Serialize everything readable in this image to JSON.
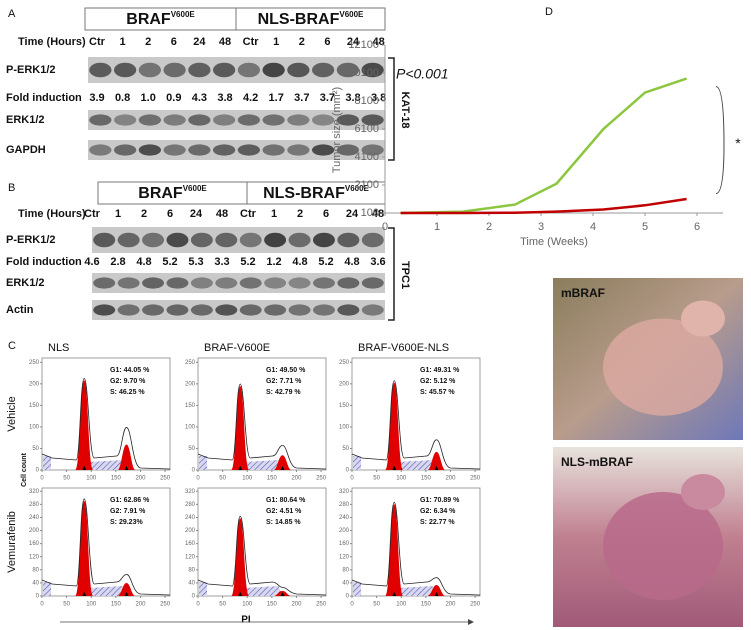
{
  "panel_a": {
    "label": "A",
    "groups": [
      {
        "name": "BRAF",
        "superscript": "V600E"
      },
      {
        "name": "NLS-BRAF",
        "superscript": "V600E"
      }
    ],
    "time_label": "Time (Hours)",
    "lanes": [
      "Ctr",
      "1",
      "2",
      "6",
      "24",
      "48",
      "Ctr",
      "1",
      "2",
      "6",
      "24",
      "48"
    ],
    "rows": [
      "P-ERK1/2",
      "Fold induction",
      "ERK1/2",
      "GAPDH"
    ],
    "fold_induction": [
      "3.9",
      "0.8",
      "1.0",
      "0.9",
      "4.3",
      "3.8",
      "4.2",
      "1.7",
      "3.7",
      "3.7",
      "3.8",
      "3.8"
    ],
    "cell_line": "KAT-18"
  },
  "panel_b": {
    "label": "B",
    "groups": [
      {
        "name": "BRAF",
        "superscript": "V600E"
      },
      {
        "name": "NLS-BRAF",
        "superscript": "V600E"
      }
    ],
    "time_label": "Time (Hours)",
    "lanes": [
      "Ctr",
      "1",
      "2",
      "6",
      "24",
      "48",
      "Ctr",
      "1",
      "2",
      "6",
      "24",
      "48"
    ],
    "rows": [
      "P-ERK1/2",
      "Fold induction",
      "ERK1/2",
      "Actin"
    ],
    "fold_induction": [
      "4.6",
      "2.8",
      "4.8",
      "5.2",
      "5.3",
      "3.3",
      "5.2",
      "1.2",
      "4.8",
      "5.2",
      "4.8",
      "3.6"
    ],
    "cell_line": "TPC1"
  },
  "panel_c": {
    "label": "C",
    "columns": [
      "NLS",
      "BRAF-V600E",
      "BRAF-V600E-NLS"
    ],
    "rows": [
      "Vehicle",
      "Vemurafenib"
    ],
    "y_label": "Cell count",
    "x_label": "PI",
    "xlim": [
      0,
      260
    ],
    "xticks": [
      0,
      50,
      100,
      150,
      200,
      250
    ],
    "row_ylims": [
      [
        0,
        260
      ],
      [
        0,
        330
      ]
    ],
    "row_yticks": [
      [
        0,
        50,
        100,
        150,
        200,
        250
      ],
      [
        0,
        40,
        80,
        120,
        160,
        200,
        240,
        280,
        320
      ]
    ],
    "stats": [
      [
        [
          "G1: 44.05 %",
          "G2: 9.70 %",
          "S: 46.25 %"
        ],
        [
          "G1: 49.50 %",
          "G2: 7.71 %",
          "S: 42.79 %"
        ],
        [
          "G1: 49.31 %",
          "G2: 5.12 %",
          "S: 45.57 %"
        ]
      ],
      [
        [
          "G1: 62.86 %",
          "G2: 7.91 %",
          "S: 29.23%"
        ],
        [
          "G1: 80.64 %",
          "G2: 4.51 %",
          "S: 14.85 %"
        ],
        [
          "G1: 70.89 %",
          "G2: 6.34 %",
          "S: 22.77 %"
        ]
      ]
    ]
  },
  "panel_d": {
    "label": "D",
    "photos": [
      "mBRAF",
      "NLS-mBRAF"
    ]
  },
  "chart_data": {
    "type": "line",
    "y_label": "Tumor size (mm²)",
    "x_label": "Time (Weeks)",
    "annotations": [
      "P<0.001",
      "*"
    ],
    "x": [
      0.3,
      1.5,
      2.5,
      3.3,
      4.2,
      5.0,
      5.8
    ],
    "series": [
      {
        "color": "#8cc63f",
        "values": [
          100,
          200,
          700,
          2200,
          6100,
          8700,
          9700
        ]
      },
      {
        "color": "#c00000",
        "values": [
          100,
          100,
          120,
          200,
          350,
          650,
          1100
        ]
      }
    ],
    "xlim": [
      0,
      6.5
    ],
    "ylim": [
      100,
      12100
    ],
    "xticks": [
      0,
      1,
      2,
      3,
      4,
      5,
      6
    ],
    "yticks": [
      100,
      2100,
      4100,
      6100,
      8100,
      10100,
      12100
    ]
  }
}
